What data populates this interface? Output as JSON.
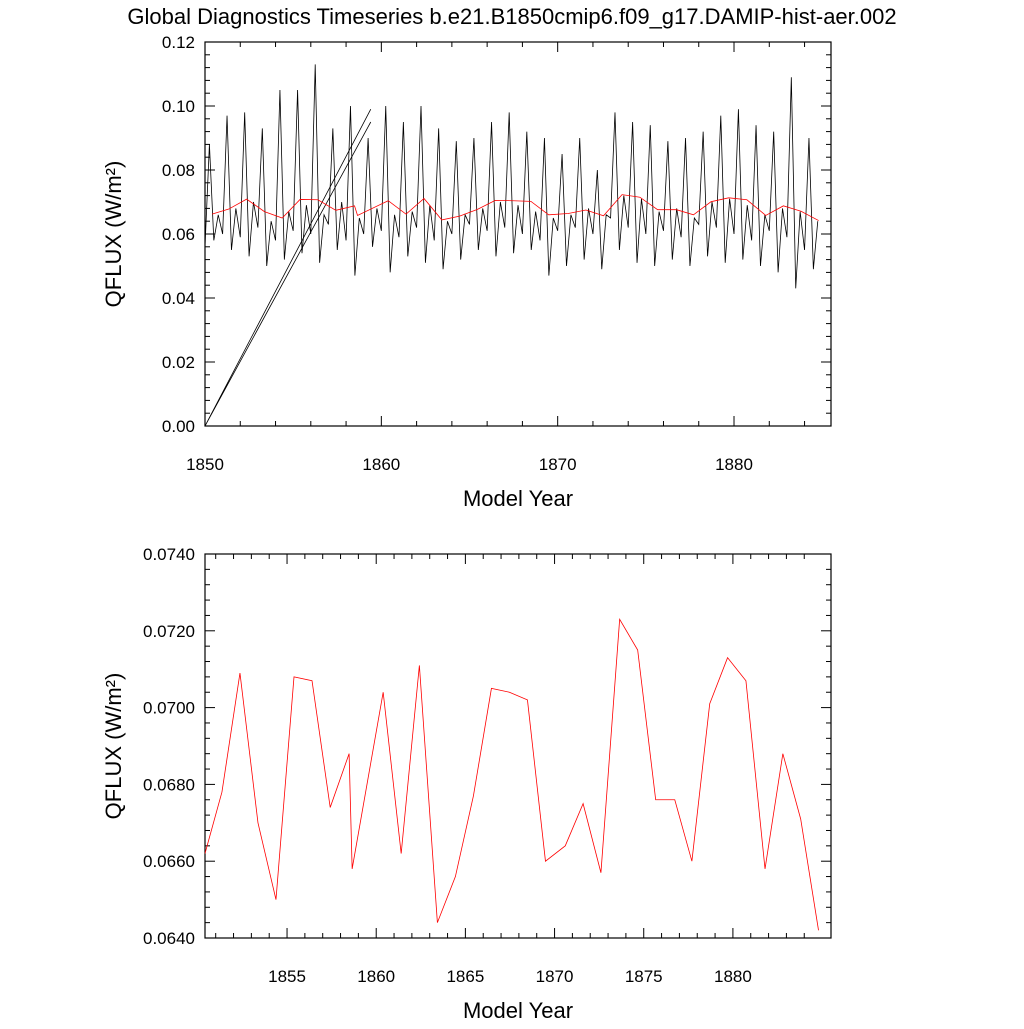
{
  "chart_data": [
    {
      "type": "line",
      "title": "Global Diagnostics Timeseries b.e21.B1850cmip6.f09_g17.DAMIP-hist-aer.002",
      "xlabel": "Model Year",
      "ylabel": "QFLUX (W/m²)",
      "xlim": [
        1850,
        1885.5
      ],
      "ylim": [
        0,
        0.12
      ],
      "xticks": [
        1850,
        1860,
        1870,
        1880
      ],
      "yticks": [
        {
          "value": 0,
          "label": "0.00"
        },
        {
          "value": 0.02,
          "label": "0.02"
        },
        {
          "value": 0.04,
          "label": "0.04"
        },
        {
          "value": 0.06,
          "label": "0.06"
        },
        {
          "value": 0.08,
          "label": "0.08"
        },
        {
          "value": 0.1,
          "label": "0.10"
        },
        {
          "value": 0.12,
          "label": "0.12"
        }
      ],
      "series": [
        {
          "color": "#000000",
          "x": [
            1850,
            1850.25,
            1850.5,
            1850.75,
            1851,
            1851.25,
            1851.5,
            1851.75,
            1852,
            1852.25,
            1852.5,
            1852.75,
            1853,
            1853.25,
            1853.5,
            1853.75,
            1854,
            1854.25,
            1854.5,
            1854.75,
            1855,
            1855.25,
            1855.5,
            1855.75,
            1856,
            1856.25,
            1856.5,
            1856.75,
            1857,
            1857.25,
            1857.5,
            1857.75,
            1858,
            1858.25,
            1858.5,
            1858.75,
            1859,
            1859.25,
            1859.5,
            1859.75,
            1860,
            1860.25,
            1860.5,
            1860.75,
            1861,
            1861.25,
            1861.5,
            1861.75,
            1862,
            1862.25,
            1862.5,
            1862.75,
            1863,
            1863.25,
            1863.5,
            1863.75,
            1864,
            1864.25,
            1864.5,
            1864.75,
            1865,
            1865.25,
            1865.5,
            1865.75,
            1866,
            1866.25,
            1866.5,
            1866.75,
            1867,
            1867.25,
            1867.5,
            1867.75,
            1868,
            1868.25,
            1868.5,
            1868.75,
            1869,
            1869.25,
            1869.5,
            1869.75,
            1870,
            1870.25,
            1870.5,
            1870.75,
            1871,
            1871.25,
            1871.5,
            1871.75,
            1872,
            1872.25,
            1872.5,
            1872.75,
            1873,
            1873.25,
            1873.5,
            1873.75,
            1874,
            1874.25,
            1874.5,
            1874.75,
            1875,
            1875.25,
            1875.5,
            1875.75,
            1876,
            1876.25,
            1876.5,
            1876.75,
            1877,
            1877.25,
            1877.5,
            1877.75,
            1878,
            1878.25,
            1878.5,
            1878.75,
            1879,
            1879.25,
            1879.5,
            1879.75,
            1880,
            1880.25,
            1880.5,
            1880.75,
            1881,
            1881.25,
            1881.5,
            1881.75,
            1882,
            1882.25,
            1882.5,
            1882.75,
            1883,
            1883.25,
            1883.5,
            1883.75,
            1884,
            1884.25,
            1884.5,
            1884.75
          ],
          "values": [
            0.056,
            0.088,
            0.058,
            0.066,
            0.06,
            0.097,
            0.055,
            0.068,
            0.059,
            0.098,
            0.053,
            0.07,
            0.062,
            0.093,
            0.05,
            0.064,
            0.058,
            0.105,
            0.052,
            0.067,
            0.061,
            0.105,
            0.054,
            0.069,
            0.06,
            0.113,
            0.051,
            0.066,
            0.063,
            0.093,
            0.055,
            0.07,
            0.058,
            0.1,
            0.047,
            0.065,
            0.06,
            0.09,
            0.056,
            0.068,
            0.061,
            0.1,
            0.048,
            0.066,
            0.059,
            0.095,
            0.053,
            0.067,
            0.062,
            0.1,
            0.051,
            0.069,
            0.058,
            0.093,
            0.049,
            0.064,
            0.06,
            0.089,
            0.052,
            0.066,
            0.063,
            0.09,
            0.055,
            0.068,
            0.061,
            0.095,
            0.053,
            0.07,
            0.062,
            0.098,
            0.054,
            0.069,
            0.06,
            0.092,
            0.055,
            0.067,
            0.058,
            0.09,
            0.047,
            0.065,
            0.061,
            0.085,
            0.05,
            0.066,
            0.062,
            0.09,
            0.052,
            0.068,
            0.06,
            0.08,
            0.049,
            0.066,
            0.065,
            0.098,
            0.055,
            0.072,
            0.062,
            0.095,
            0.051,
            0.071,
            0.06,
            0.094,
            0.05,
            0.067,
            0.061,
            0.089,
            0.052,
            0.068,
            0.059,
            0.09,
            0.05,
            0.065,
            0.063,
            0.092,
            0.053,
            0.07,
            0.062,
            0.097,
            0.051,
            0.071,
            0.06,
            0.099,
            0.052,
            0.069,
            0.058,
            0.094,
            0.05,
            0.066,
            0.061,
            0.092,
            0.048,
            0.068,
            0.059,
            0.109,
            0.043,
            0.067,
            0.055,
            0.09,
            0.049,
            0.064
          ]
        },
        {
          "color": "#000000",
          "x": [
            1850,
            1859.4,
            1850,
            1850,
            1859.4
          ],
          "values": [
            0,
            0.099,
            null,
            0,
            0.095
          ]
        },
        {
          "color": "#ff0000",
          "x": [
            1850.4,
            1851.35,
            1852.36,
            1853.37,
            1854.38,
            1855.39,
            1856.4,
            1857.42,
            1858.48,
            1858.65,
            1860.39,
            1861.4,
            1862.42,
            1863.43,
            1864.44,
            1865.45,
            1866.46,
            1867.47,
            1868.48,
            1869.49,
            1870.6,
            1871.6,
            1872.6,
            1873.65,
            1874.66,
            1875.67,
            1876.74,
            1877.7,
            1878.7,
            1879.7,
            1880.73,
            1881.8,
            1882.8,
            1883.8,
            1884.8
          ],
          "values": [
            0.0662,
            0.0678,
            0.0709,
            0.067,
            0.065,
            0.0708,
            0.0707,
            0.0674,
            0.0688,
            0.0658,
            0.0704,
            0.0662,
            0.0711,
            0.0644,
            0.0656,
            0.0677,
            0.0705,
            0.0704,
            0.0702,
            0.066,
            0.0664,
            0.0675,
            0.0657,
            0.0723,
            0.0715,
            0.0676,
            0.0676,
            0.066,
            0.0701,
            0.0713,
            0.0707,
            0.0658,
            0.0688,
            0.0671,
            0.0642
          ]
        }
      ]
    },
    {
      "type": "line",
      "xlabel": "Model Year",
      "ylabel": "QFLUX (W/m²)",
      "xlim": [
        1850.4,
        1885.5
      ],
      "ylim": [
        0.064,
        0.074
      ],
      "xticks": [
        1855,
        1860,
        1865,
        1870,
        1875,
        1880
      ],
      "yticks": [
        {
          "value": 0.064,
          "label": "0.0640"
        },
        {
          "value": 0.066,
          "label": "0.0660"
        },
        {
          "value": 0.068,
          "label": "0.0680"
        },
        {
          "value": 0.07,
          "label": "0.0700"
        },
        {
          "value": 0.072,
          "label": "0.0720"
        },
        {
          "value": 0.074,
          "label": "0.0740"
        }
      ],
      "series": [
        {
          "color": "#ff0000",
          "x": [
            1850.4,
            1851.35,
            1852.36,
            1853.37,
            1854.38,
            1855.39,
            1856.4,
            1857.42,
            1858.48,
            1858.65,
            1860.39,
            1861.4,
            1862.42,
            1863.43,
            1864.44,
            1865.45,
            1866.46,
            1867.47,
            1868.48,
            1869.49,
            1870.6,
            1871.6,
            1872.6,
            1873.65,
            1874.66,
            1875.67,
            1876.74,
            1877.7,
            1878.7,
            1879.7,
            1880.73,
            1881.8,
            1882.8,
            1883.8,
            1884.8
          ],
          "values": [
            0.0662,
            0.0678,
            0.0709,
            0.067,
            0.065,
            0.0708,
            0.0707,
            0.0674,
            0.0688,
            0.0658,
            0.0704,
            0.0662,
            0.0711,
            0.0644,
            0.0656,
            0.0677,
            0.0705,
            0.0704,
            0.0702,
            0.066,
            0.0664,
            0.0675,
            0.0657,
            0.0723,
            0.0715,
            0.0676,
            0.0676,
            0.066,
            0.0701,
            0.0713,
            0.0707,
            0.0658,
            0.0688,
            0.0671,
            0.0642
          ]
        }
      ]
    }
  ]
}
